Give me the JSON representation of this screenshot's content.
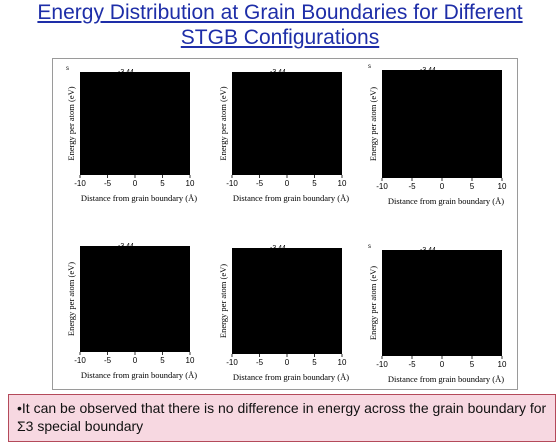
{
  "title_line1": "Energy Distribution at Grain Boundaries for Different",
  "title_line2": "STGB Configurations",
  "note": "•It can be observed that there is no difference in energy across the grain boundary for Σ3 special boundary",
  "colors": {
    "title": "#1e2ea8",
    "plot_fill": "#000000",
    "note_bg": "#f7d8e1",
    "note_border": "#b44a5a"
  },
  "chart_data": [
    {
      "type": "line",
      "ylabel": "Energy per atom (eV)",
      "xlabel": "Distance from grain boundary (Å)",
      "x_ticks": [
        "-10",
        "-5",
        "0",
        "5",
        "10"
      ],
      "xlim": [
        -10,
        10
      ],
      "y_tick_top": "-3.44",
      "corner_mark": "s"
    },
    {
      "type": "line",
      "ylabel": "Energy per atom (eV)",
      "xlabel": "Distance from grain boundary (Å)",
      "x_ticks": [
        "-10",
        "-5",
        "0",
        "5",
        "10"
      ],
      "xlim": [
        -10,
        10
      ],
      "y_tick_top": "-3.44",
      "corner_mark": ""
    },
    {
      "type": "line",
      "ylabel": "Energy per atom (eV)",
      "xlabel": "Distance from grain boundary (Å)",
      "x_ticks": [
        "-10",
        "-5",
        "0",
        "5",
        "10"
      ],
      "xlim": [
        -10,
        10
      ],
      "y_tick_top": "-3.44",
      "corner_mark": "s"
    },
    {
      "type": "line",
      "ylabel": "Energy per atom (eV)",
      "xlabel": "Distance from grain boundary (Å)",
      "x_ticks": [
        "-10",
        "-5",
        "0",
        "5",
        "10"
      ],
      "xlim": [
        -10,
        10
      ],
      "y_tick_top": "-3.44",
      "corner_mark": ""
    },
    {
      "type": "line",
      "ylabel": "Energy per atom (eV)",
      "xlabel": "Distance from grain boundary (Å)",
      "x_ticks": [
        "-10",
        "-5",
        "0",
        "5",
        "10"
      ],
      "xlim": [
        -10,
        10
      ],
      "y_tick_top": "-3.44",
      "corner_mark": ""
    },
    {
      "type": "line",
      "ylabel": "Energy per atom (eV)",
      "xlabel": "Distance from grain boundary (Å)",
      "x_ticks": [
        "-10",
        "-5",
        "0",
        "5",
        "10"
      ],
      "xlim": [
        -10,
        10
      ],
      "y_tick_top": "-3.44",
      "corner_mark": "s"
    }
  ]
}
